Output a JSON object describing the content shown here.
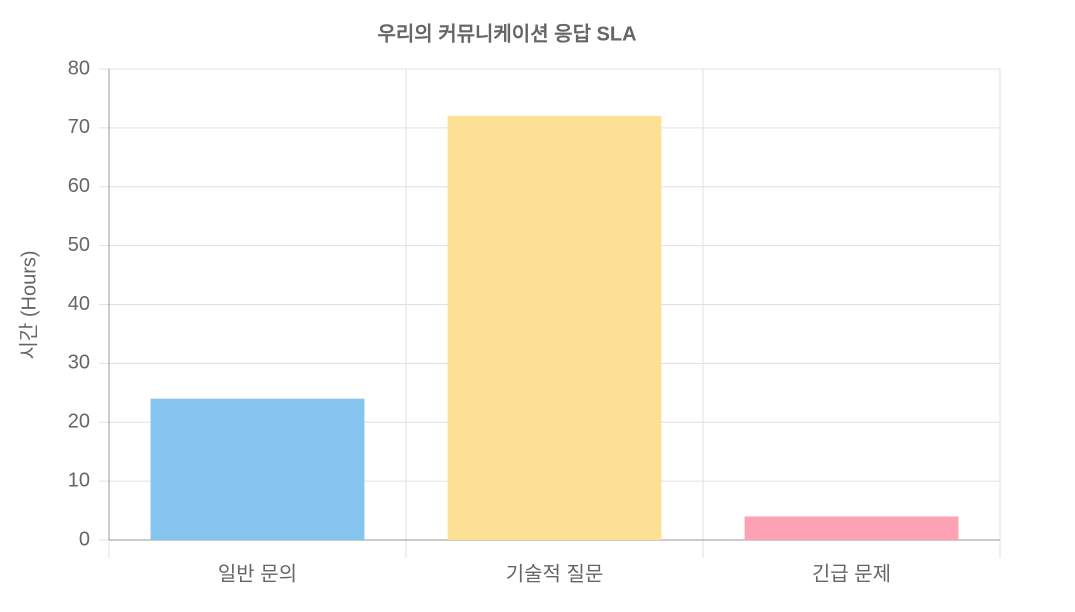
{
  "chart_data": {
    "type": "bar",
    "title": "우리의 커뮤니케이션 응답 SLA",
    "y_label": "시간 (Hours)",
    "categories": [
      "일반 문의",
      "기술적 질문",
      "긴급 문제"
    ],
    "values": [
      24,
      72,
      4
    ],
    "colors": [
      "#86c5f0",
      "#fde096",
      "#fda2b5"
    ],
    "ylim": [
      0,
      80
    ],
    "yticks": [
      0,
      10,
      20,
      30,
      40,
      50,
      60,
      70,
      80
    ],
    "grid": true
  }
}
